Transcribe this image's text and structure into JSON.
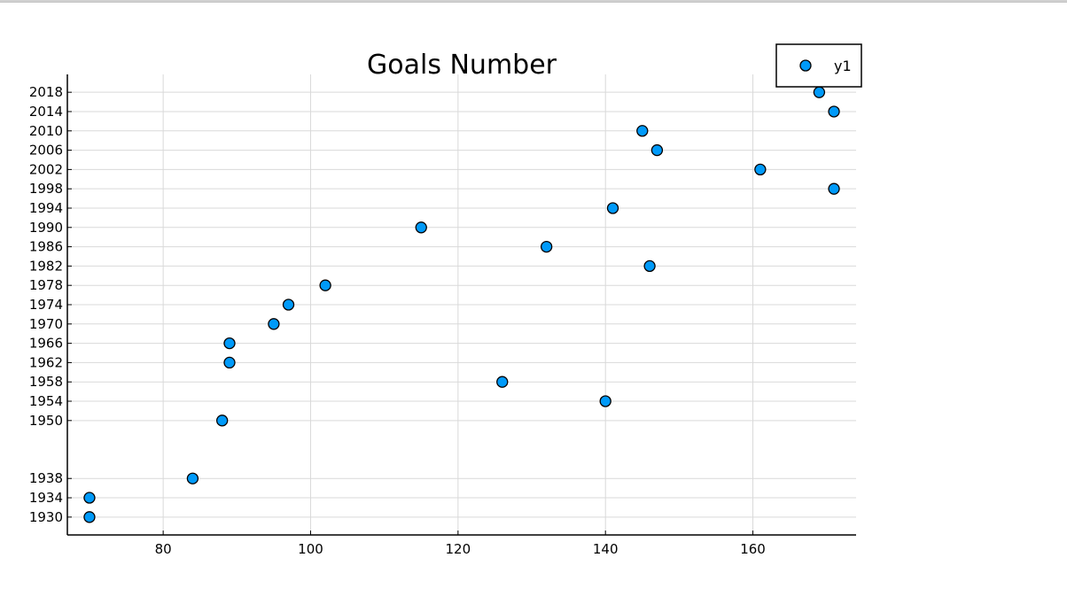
{
  "chart_data": {
    "type": "scatter",
    "title": "Goals Number",
    "xlabel": "",
    "ylabel": "",
    "xlim": [
      67,
      174
    ],
    "ylim": [
      1926.3,
      2021.7
    ],
    "x_ticks": [
      80,
      100,
      120,
      140,
      160
    ],
    "y_ticks": [
      1930,
      1934,
      1938,
      1950,
      1954,
      1958,
      1962,
      1966,
      1970,
      1974,
      1978,
      1982,
      1986,
      1990,
      1994,
      1998,
      2002,
      2006,
      2010,
      2014,
      2018
    ],
    "grid": true,
    "legend_position": "top-right",
    "series": [
      {
        "name": "y1",
        "color": "#009af9",
        "points": [
          {
            "x": 70,
            "y": 1930
          },
          {
            "x": 70,
            "y": 1934
          },
          {
            "x": 84,
            "y": 1938
          },
          {
            "x": 88,
            "y": 1950
          },
          {
            "x": 140,
            "y": 1954
          },
          {
            "x": 126,
            "y": 1958
          },
          {
            "x": 89,
            "y": 1962
          },
          {
            "x": 89,
            "y": 1966
          },
          {
            "x": 95,
            "y": 1970
          },
          {
            "x": 97,
            "y": 1974
          },
          {
            "x": 102,
            "y": 1978
          },
          {
            "x": 146,
            "y": 1982
          },
          {
            "x": 132,
            "y": 1986
          },
          {
            "x": 115,
            "y": 1990
          },
          {
            "x": 141,
            "y": 1994
          },
          {
            "x": 171,
            "y": 1998
          },
          {
            "x": 161,
            "y": 2002
          },
          {
            "x": 147,
            "y": 2006
          },
          {
            "x": 145,
            "y": 2010
          },
          {
            "x": 171,
            "y": 2014
          },
          {
            "x": 169,
            "y": 2018
          }
        ]
      }
    ]
  }
}
